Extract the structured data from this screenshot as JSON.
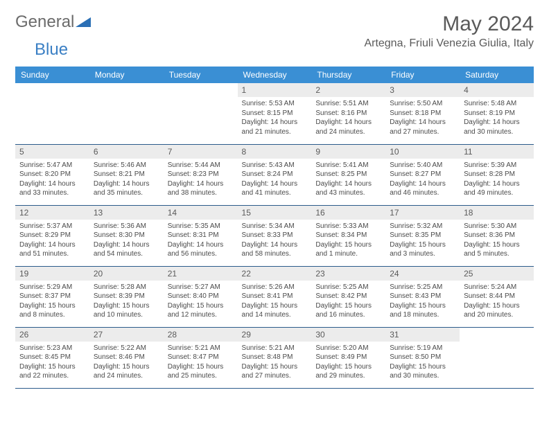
{
  "logo": {
    "part1": "General",
    "part2": "Blue",
    "shape_color": "#2a6fb5"
  },
  "title": "May 2024",
  "location": "Artegna, Friuli Venezia Giulia, Italy",
  "colors": {
    "header_bg": "#3a8fd4",
    "header_text": "#ffffff",
    "daynum_bg": "#ececec",
    "cell_border": "#2a5a8a",
    "body_text": "#4a4a4a"
  },
  "weekdays": [
    "Sunday",
    "Monday",
    "Tuesday",
    "Wednesday",
    "Thursday",
    "Friday",
    "Saturday"
  ],
  "weeks": [
    [
      null,
      null,
      null,
      {
        "n": "1",
        "sr": "Sunrise: 5:53 AM",
        "ss": "Sunset: 8:15 PM",
        "d1": "Daylight: 14 hours",
        "d2": "and 21 minutes."
      },
      {
        "n": "2",
        "sr": "Sunrise: 5:51 AM",
        "ss": "Sunset: 8:16 PM",
        "d1": "Daylight: 14 hours",
        "d2": "and 24 minutes."
      },
      {
        "n": "3",
        "sr": "Sunrise: 5:50 AM",
        "ss": "Sunset: 8:18 PM",
        "d1": "Daylight: 14 hours",
        "d2": "and 27 minutes."
      },
      {
        "n": "4",
        "sr": "Sunrise: 5:48 AM",
        "ss": "Sunset: 8:19 PM",
        "d1": "Daylight: 14 hours",
        "d2": "and 30 minutes."
      }
    ],
    [
      {
        "n": "5",
        "sr": "Sunrise: 5:47 AM",
        "ss": "Sunset: 8:20 PM",
        "d1": "Daylight: 14 hours",
        "d2": "and 33 minutes."
      },
      {
        "n": "6",
        "sr": "Sunrise: 5:46 AM",
        "ss": "Sunset: 8:21 PM",
        "d1": "Daylight: 14 hours",
        "d2": "and 35 minutes."
      },
      {
        "n": "7",
        "sr": "Sunrise: 5:44 AM",
        "ss": "Sunset: 8:23 PM",
        "d1": "Daylight: 14 hours",
        "d2": "and 38 minutes."
      },
      {
        "n": "8",
        "sr": "Sunrise: 5:43 AM",
        "ss": "Sunset: 8:24 PM",
        "d1": "Daylight: 14 hours",
        "d2": "and 41 minutes."
      },
      {
        "n": "9",
        "sr": "Sunrise: 5:41 AM",
        "ss": "Sunset: 8:25 PM",
        "d1": "Daylight: 14 hours",
        "d2": "and 43 minutes."
      },
      {
        "n": "10",
        "sr": "Sunrise: 5:40 AM",
        "ss": "Sunset: 8:27 PM",
        "d1": "Daylight: 14 hours",
        "d2": "and 46 minutes."
      },
      {
        "n": "11",
        "sr": "Sunrise: 5:39 AM",
        "ss": "Sunset: 8:28 PM",
        "d1": "Daylight: 14 hours",
        "d2": "and 49 minutes."
      }
    ],
    [
      {
        "n": "12",
        "sr": "Sunrise: 5:37 AM",
        "ss": "Sunset: 8:29 PM",
        "d1": "Daylight: 14 hours",
        "d2": "and 51 minutes."
      },
      {
        "n": "13",
        "sr": "Sunrise: 5:36 AM",
        "ss": "Sunset: 8:30 PM",
        "d1": "Daylight: 14 hours",
        "d2": "and 54 minutes."
      },
      {
        "n": "14",
        "sr": "Sunrise: 5:35 AM",
        "ss": "Sunset: 8:31 PM",
        "d1": "Daylight: 14 hours",
        "d2": "and 56 minutes."
      },
      {
        "n": "15",
        "sr": "Sunrise: 5:34 AM",
        "ss": "Sunset: 8:33 PM",
        "d1": "Daylight: 14 hours",
        "d2": "and 58 minutes."
      },
      {
        "n": "16",
        "sr": "Sunrise: 5:33 AM",
        "ss": "Sunset: 8:34 PM",
        "d1": "Daylight: 15 hours",
        "d2": "and 1 minute."
      },
      {
        "n": "17",
        "sr": "Sunrise: 5:32 AM",
        "ss": "Sunset: 8:35 PM",
        "d1": "Daylight: 15 hours",
        "d2": "and 3 minutes."
      },
      {
        "n": "18",
        "sr": "Sunrise: 5:30 AM",
        "ss": "Sunset: 8:36 PM",
        "d1": "Daylight: 15 hours",
        "d2": "and 5 minutes."
      }
    ],
    [
      {
        "n": "19",
        "sr": "Sunrise: 5:29 AM",
        "ss": "Sunset: 8:37 PM",
        "d1": "Daylight: 15 hours",
        "d2": "and 8 minutes."
      },
      {
        "n": "20",
        "sr": "Sunrise: 5:28 AM",
        "ss": "Sunset: 8:39 PM",
        "d1": "Daylight: 15 hours",
        "d2": "and 10 minutes."
      },
      {
        "n": "21",
        "sr": "Sunrise: 5:27 AM",
        "ss": "Sunset: 8:40 PM",
        "d1": "Daylight: 15 hours",
        "d2": "and 12 minutes."
      },
      {
        "n": "22",
        "sr": "Sunrise: 5:26 AM",
        "ss": "Sunset: 8:41 PM",
        "d1": "Daylight: 15 hours",
        "d2": "and 14 minutes."
      },
      {
        "n": "23",
        "sr": "Sunrise: 5:25 AM",
        "ss": "Sunset: 8:42 PM",
        "d1": "Daylight: 15 hours",
        "d2": "and 16 minutes."
      },
      {
        "n": "24",
        "sr": "Sunrise: 5:25 AM",
        "ss": "Sunset: 8:43 PM",
        "d1": "Daylight: 15 hours",
        "d2": "and 18 minutes."
      },
      {
        "n": "25",
        "sr": "Sunrise: 5:24 AM",
        "ss": "Sunset: 8:44 PM",
        "d1": "Daylight: 15 hours",
        "d2": "and 20 minutes."
      }
    ],
    [
      {
        "n": "26",
        "sr": "Sunrise: 5:23 AM",
        "ss": "Sunset: 8:45 PM",
        "d1": "Daylight: 15 hours",
        "d2": "and 22 minutes."
      },
      {
        "n": "27",
        "sr": "Sunrise: 5:22 AM",
        "ss": "Sunset: 8:46 PM",
        "d1": "Daylight: 15 hours",
        "d2": "and 24 minutes."
      },
      {
        "n": "28",
        "sr": "Sunrise: 5:21 AM",
        "ss": "Sunset: 8:47 PM",
        "d1": "Daylight: 15 hours",
        "d2": "and 25 minutes."
      },
      {
        "n": "29",
        "sr": "Sunrise: 5:21 AM",
        "ss": "Sunset: 8:48 PM",
        "d1": "Daylight: 15 hours",
        "d2": "and 27 minutes."
      },
      {
        "n": "30",
        "sr": "Sunrise: 5:20 AM",
        "ss": "Sunset: 8:49 PM",
        "d1": "Daylight: 15 hours",
        "d2": "and 29 minutes."
      },
      {
        "n": "31",
        "sr": "Sunrise: 5:19 AM",
        "ss": "Sunset: 8:50 PM",
        "d1": "Daylight: 15 hours",
        "d2": "and 30 minutes."
      },
      null
    ]
  ]
}
